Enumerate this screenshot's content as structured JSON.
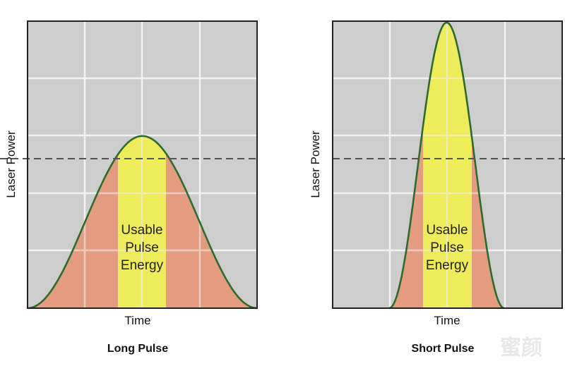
{
  "colors": {
    "background": "#ffffff",
    "panel": "#cdcdcd",
    "grid": "#f2f2f2",
    "frame": "#222222",
    "pulse_fill": "#e39c80",
    "usable_fill": "#eeec5a",
    "curve": "#2f6b2f",
    "threshold_line": "#555555"
  },
  "panels": [
    {
      "id": "long",
      "title": "Long Pulse",
      "y_label": "Laser Power",
      "x_label": "Time",
      "usable_label": [
        "Usable",
        "Pulse",
        "Energy"
      ],
      "peak_level": 0.6,
      "threshold_level": 0.52
    },
    {
      "id": "short",
      "title": "Short Pulse",
      "y_label": "Laser Power",
      "x_label": "Time",
      "usable_label": [
        "Usable",
        "Pulse",
        "Energy"
      ],
      "peak_level": 1.0,
      "threshold_level": 0.52
    }
  ],
  "watermark": "蜜颜"
}
